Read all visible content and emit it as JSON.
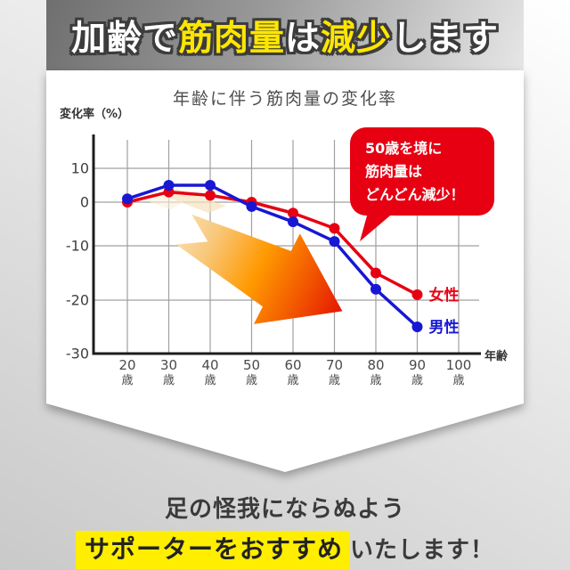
{
  "header": {
    "segments": [
      {
        "text": "加齢で",
        "emphasis": false
      },
      {
        "text": "筋肉量",
        "emphasis": true
      },
      {
        "text": "は",
        "emphasis": false
      },
      {
        "text": "減少",
        "emphasis": true
      },
      {
        "text": "します",
        "emphasis": false
      }
    ]
  },
  "callout": {
    "lines": [
      "50歳を境に",
      "筋肉量は",
      "どんどん減少！"
    ],
    "bg_color": "#e60012"
  },
  "chart_data": {
    "type": "line",
    "title": "年齢に伴う筋肉量の変化率",
    "xlabel": "年齢",
    "ylabel": "変化率（%）",
    "x_unit": "歳",
    "x": [
      20,
      30,
      40,
      50,
      60,
      70,
      80,
      90
    ],
    "x_ticks": [
      20,
      30,
      40,
      50,
      60,
      70,
      80,
      90,
      100
    ],
    "y_ticks": [
      10,
      0,
      -10,
      -20,
      -30
    ],
    "ylim": [
      -30,
      13
    ],
    "grid": true,
    "legend_position": "end-of-line",
    "series": [
      {
        "name": "女性",
        "color": "#e60012",
        "values": [
          0,
          3,
          2,
          0,
          -2.5,
          -6,
          -15,
          -19
        ]
      },
      {
        "name": "男性",
        "color": "#1717d4",
        "values": [
          1,
          5,
          5,
          -1,
          -4.5,
          -9,
          -18,
          -25
        ]
      }
    ]
  },
  "footer": {
    "line1": "足の怪我にならぬよう",
    "line2_highlight": "サポーターをおすすめ",
    "line2_rest": "いたします！",
    "highlight_color": "#ffee00"
  },
  "theme": {
    "accent_red": "#e60012",
    "accent_blue": "#1717d4",
    "header_yellow": "#ffe600",
    "axis_color": "#1c1c1c",
    "grid_color": "#a0a0a0"
  }
}
